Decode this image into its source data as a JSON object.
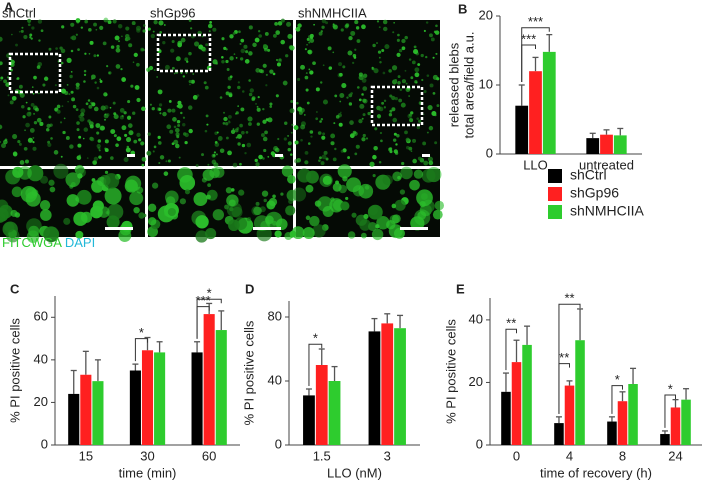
{
  "figure": {
    "panel_label": "A",
    "images": [
      "shCtrl",
      "shGp96",
      "shNMHCIIA"
    ],
    "stains": [
      "FITCWGA",
      "DAPI"
    ]
  },
  "chart_data": [
    {
      "type": "bar",
      "panel": "B",
      "ylabel": [
        "released blebs",
        "total area/field a.u."
      ],
      "categories": [
        "LLO",
        "untreated"
      ],
      "ylim": [
        0,
        20
      ],
      "yticks": [
        0,
        10,
        20
      ],
      "series": [
        {
          "name": "shCtrl",
          "color": "#000000",
          "values": [
            7,
            2.3
          ],
          "errors": [
            3,
            0.7
          ]
        },
        {
          "name": "shGp96",
          "color": "#ff2020",
          "values": [
            12,
            2.8
          ],
          "errors": [
            2,
            0.7
          ]
        },
        {
          "name": "shNMHCIIA",
          "color": "#2ecc2e",
          "values": [
            14.8,
            2.7
          ],
          "errors": [
            2.5,
            1
          ]
        }
      ],
      "annotations": [
        "***",
        "***"
      ]
    },
    {
      "type": "bar",
      "panel": "C",
      "ylabel": [
        "% PI positive cells"
      ],
      "xlabel": "time (min)",
      "categories": [
        "15",
        "30",
        "60"
      ],
      "ylim": [
        0,
        70
      ],
      "yticks": [
        0,
        20,
        40,
        60
      ],
      "series": [
        {
          "color": "#000000",
          "values": [
            24,
            35,
            43.5
          ],
          "errors": [
            11,
            3,
            5
          ]
        },
        {
          "color": "#ff2020",
          "values": [
            33,
            44.5,
            61.5
          ],
          "errors": [
            11,
            6,
            5
          ]
        },
        {
          "color": "#2ecc2e",
          "values": [
            30,
            43.5,
            54
          ],
          "errors": [
            10,
            5,
            9
          ]
        }
      ],
      "annotations": [
        "*",
        "***",
        "*"
      ]
    },
    {
      "type": "bar",
      "panel": "D",
      "ylabel": [
        "% PI positive cells"
      ],
      "xlabel": "LLO (nM)",
      "categories": [
        "1.5",
        "3"
      ],
      "ylim": [
        0,
        90
      ],
      "yticks": [
        0,
        40,
        80
      ],
      "series": [
        {
          "color": "#000000",
          "values": [
            31,
            71
          ],
          "errors": [
            4,
            8
          ]
        },
        {
          "color": "#ff2020",
          "values": [
            50,
            76
          ],
          "errors": [
            10,
            6
          ]
        },
        {
          "color": "#2ecc2e",
          "values": [
            40,
            73
          ],
          "errors": [
            9,
            8
          ]
        }
      ],
      "annotations": [
        "*"
      ]
    },
    {
      "type": "bar",
      "panel": "E",
      "ylabel": [
        "% PI positive cells"
      ],
      "xlabel": "time of recovery (h)",
      "categories": [
        "0",
        "4",
        "8",
        "24"
      ],
      "ylim": [
        0,
        47
      ],
      "yticks": [
        0,
        20,
        40
      ],
      "series": [
        {
          "color": "#000000",
          "values": [
            17,
            7,
            7.5,
            3.5
          ],
          "errors": [
            6,
            2,
            1.5,
            1
          ]
        },
        {
          "color": "#ff2020",
          "values": [
            26.5,
            19,
            14,
            12
          ],
          "errors": [
            7,
            1.5,
            3,
            2.5
          ]
        },
        {
          "color": "#2ecc2e",
          "values": [
            32,
            33.5,
            19.5,
            14.5
          ],
          "errors": [
            6,
            10,
            5,
            3.5
          ]
        }
      ],
      "annotations": [
        "**",
        "**",
        "**",
        "*",
        "*"
      ]
    }
  ]
}
